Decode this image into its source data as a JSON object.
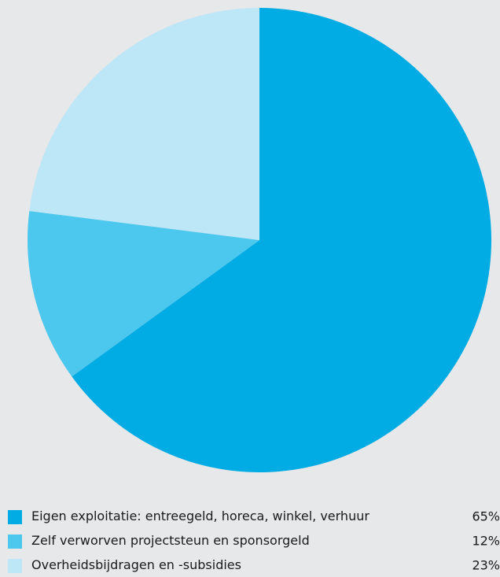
{
  "chart_data": {
    "type": "pie",
    "categories": [
      "Eigen exploitatie: entreegeld, horeca, winkel, verhuur",
      "Zelf verworven projectsteun en sponsorgeld",
      "Overheidsbijdragen en -subsidies"
    ],
    "values": [
      65,
      12,
      23
    ],
    "value_labels": [
      "65%",
      "12%",
      "23%"
    ],
    "colors": [
      "#00ace3",
      "#4cc7ee",
      "#bde6f6"
    ],
    "title": "",
    "legend": "bottom"
  }
}
